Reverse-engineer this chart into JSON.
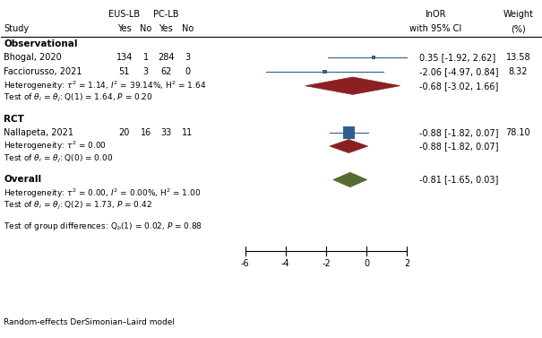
{
  "title": "",
  "studies": [
    {
      "name": "Bhogal, 2020",
      "eus_yes": 134,
      "eus_no": 1,
      "pc_yes": 284,
      "pc_no": 3,
      "estimate": 0.35,
      "ci_lo": -1.92,
      "ci_hi": 2.62,
      "weight": 13.58,
      "group": "obs"
    },
    {
      "name": "Facciorusso, 2021",
      "eus_yes": 51,
      "eus_no": 3,
      "pc_yes": 62,
      "pc_no": 0,
      "estimate": -2.06,
      "ci_lo": -4.97,
      "ci_hi": 0.84,
      "weight": 8.32,
      "group": "obs"
    },
    {
      "name": "Nallapeta, 2021",
      "eus_yes": 20,
      "eus_no": 16,
      "pc_yes": 33,
      "pc_no": 11,
      "estimate": -0.88,
      "ci_lo": -1.82,
      "ci_hi": 0.07,
      "weight": 78.1,
      "group": "rct"
    }
  ],
  "pooled": [
    {
      "name": "obs_pooled",
      "estimate": -0.68,
      "ci_lo": -3.02,
      "ci_hi": 1.66,
      "group": "obs",
      "color": "#8B2020"
    },
    {
      "name": "rct_pooled",
      "estimate": -0.88,
      "ci_lo": -1.82,
      "ci_hi": 0.07,
      "group": "rct",
      "color": "#8B2020"
    },
    {
      "name": "overall",
      "estimate": -0.81,
      "ci_lo": -1.65,
      "ci_hi": 0.03,
      "group": "overall",
      "color": "#556B2F"
    }
  ],
  "footnote": "Random-effects DerSimonian–Laird model",
  "xmin": -6,
  "xmax": 2,
  "xticks": [
    -6,
    -4,
    -2,
    0,
    2
  ],
  "study_color": "#2F5F8F",
  "diamond_obs_color": "#8B2020",
  "diamond_rct_color": "#8B2020",
  "diamond_overall_color": "#556B2F"
}
